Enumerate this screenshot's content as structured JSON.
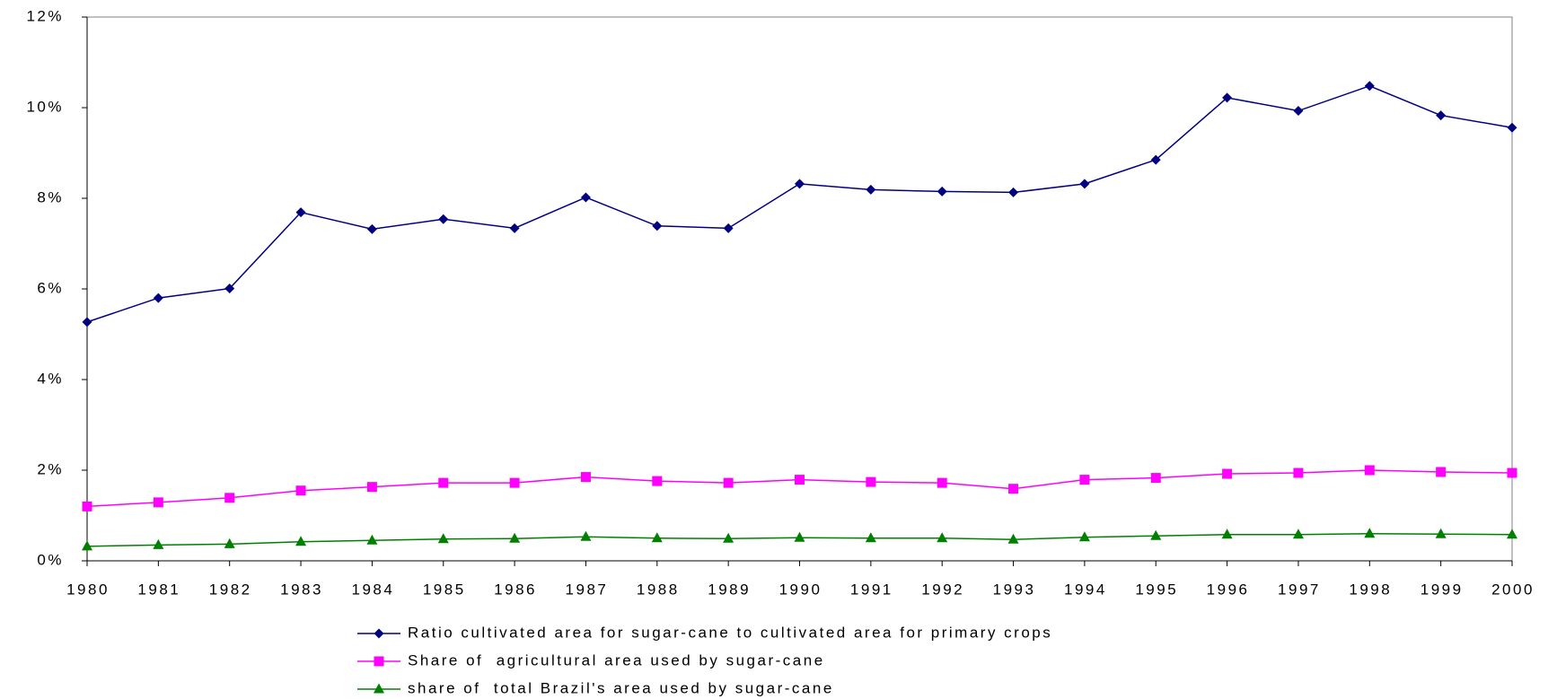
{
  "chart_data": {
    "type": "line",
    "categories": [
      "1980",
      "1981",
      "1982",
      "1983",
      "1984",
      "1985",
      "1986",
      "1987",
      "1988",
      "1989",
      "1990",
      "1991",
      "1992",
      "1993",
      "1994",
      "1995",
      "1996",
      "1997",
      "1998",
      "1999",
      "2000"
    ],
    "series": [
      {
        "name": "Ratio cultivated area for sugar-cane to cultivated area for primary crops",
        "color": "#000080",
        "marker": "diamond",
        "values": [
          5.27,
          5.8,
          6.01,
          7.69,
          7.32,
          7.54,
          7.34,
          8.02,
          7.39,
          7.34,
          8.32,
          8.19,
          8.15,
          8.13,
          8.32,
          8.85,
          10.22,
          9.93,
          10.48,
          9.83,
          9.56
        ]
      },
      {
        "name": "Share of  agricultural area used by sugar-cane",
        "color": "#ff00ff",
        "marker": "square",
        "values": [
          1.2,
          1.29,
          1.39,
          1.55,
          1.63,
          1.72,
          1.72,
          1.85,
          1.76,
          1.72,
          1.79,
          1.74,
          1.72,
          1.59,
          1.79,
          1.83,
          1.92,
          1.94,
          2.0,
          1.96,
          1.94
        ]
      },
      {
        "name": "share of  total Brazil's area used by sugar-cane",
        "color": "#008000",
        "marker": "triangle",
        "values": [
          0.32,
          0.35,
          0.37,
          0.42,
          0.45,
          0.48,
          0.49,
          0.53,
          0.5,
          0.49,
          0.51,
          0.5,
          0.5,
          0.47,
          0.52,
          0.55,
          0.58,
          0.58,
          0.6,
          0.59,
          0.58
        ]
      }
    ],
    "ylim": [
      0,
      12
    ],
    "yticks": [
      {
        "value": 0,
        "label": "0%"
      },
      {
        "value": 2,
        "label": "2%"
      },
      {
        "value": 4,
        "label": "4%"
      },
      {
        "value": 6,
        "label": "6%"
      },
      {
        "value": 8,
        "label": "8%"
      },
      {
        "value": 10,
        "label": "10%"
      },
      {
        "value": 12,
        "label": "12%"
      }
    ],
    "grid": false
  }
}
